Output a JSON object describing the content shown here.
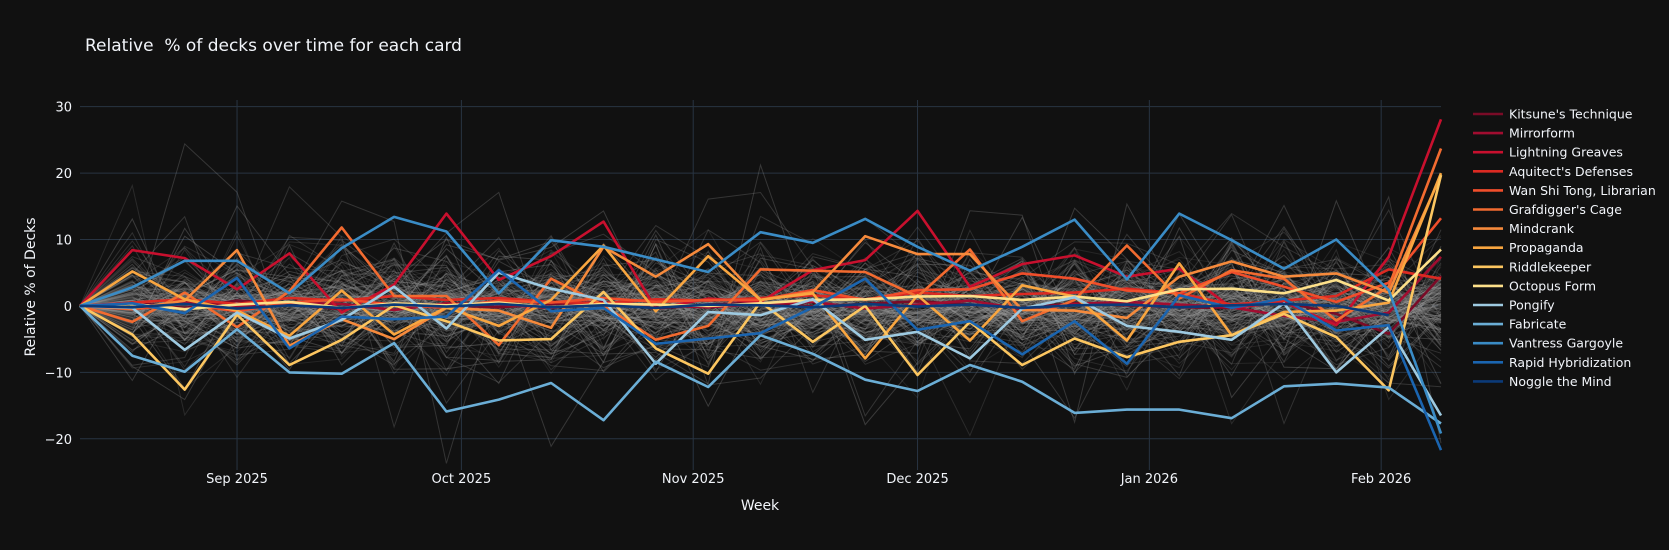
{
  "chart_data": {
    "type": "line",
    "title": "Relative  % of decks over time for each card",
    "xlabel": "Week",
    "ylabel": "Relative % of Decks",
    "x": [
      "2025-08-11",
      "2025-08-18",
      "2025-08-25",
      "2025-09-01",
      "2025-09-08",
      "2025-09-15",
      "2025-09-22",
      "2025-09-29",
      "2025-10-06",
      "2025-10-13",
      "2025-10-20",
      "2025-10-27",
      "2025-11-03",
      "2025-11-10",
      "2025-11-17",
      "2025-11-24",
      "2025-12-01",
      "2025-12-08",
      "2025-12-15",
      "2025-12-22",
      "2025-12-29",
      "2026-01-05",
      "2026-01-12",
      "2026-01-19",
      "2026-01-26",
      "2026-02-02",
      "2026-02-09"
    ],
    "xlim": [
      "2025-08-11",
      "2026-02-09"
    ],
    "ylim": [
      -24.7,
      31
    ],
    "x_ticks": [
      {
        "date": "2025-09-01",
        "label": "Sep 2025"
      },
      {
        "date": "2025-10-01",
        "label": "Oct 2025"
      },
      {
        "date": "2025-11-01",
        "label": "Nov 2025"
      },
      {
        "date": "2025-12-01",
        "label": "Dec 2025"
      },
      {
        "date": "2026-01-01",
        "label": "Jan 2026"
      },
      {
        "date": "2026-02-01",
        "label": "Feb 2026"
      }
    ],
    "y_ticks": [
      {
        "value": 30,
        "label": "30"
      },
      {
        "value": 20,
        "label": "20"
      },
      {
        "value": 10,
        "label": "10"
      },
      {
        "value": 0,
        "label": "0"
      },
      {
        "value": -10,
        "label": "−10"
      },
      {
        "value": -20,
        "label": "−20"
      }
    ],
    "grid": true,
    "zero_line": "dashed",
    "legend_position": "right",
    "background_series_count": 160,
    "background_color": "#9a9a9a",
    "series": [
      {
        "name": "Kitsune's Technique",
        "color": "#7a0b27",
        "values": [
          0,
          0.5,
          -0.3,
          0.8,
          0.2,
          -0.5,
          0.4,
          0.1,
          -0.2,
          0.3,
          0.6,
          -0.4,
          0.2,
          0.5,
          -0.1,
          0.3,
          0.7,
          0.2,
          -0.3,
          0.4,
          0.1,
          -0.2,
          -0.3,
          0.6,
          -1.2,
          -4.2,
          4.5
        ]
      },
      {
        "name": "Mirrorform",
        "color": "#a10d30",
        "values": [
          0,
          -0.4,
          0.6,
          -0.2,
          0.5,
          0.3,
          -0.6,
          0.4,
          0.2,
          -0.3,
          0.5,
          0.1,
          -0.2,
          0.3,
          0.6,
          -0.4,
          0.2,
          0.8,
          -0.5,
          0.3,
          0.6,
          0.2,
          -0.2,
          -1.5,
          -2.4,
          -1.0,
          7.4
        ]
      },
      {
        "name": "Lightning Greaves",
        "color": "#c8102e",
        "values": [
          0,
          8.4,
          7.2,
          2.5,
          7.9,
          -1.0,
          3.2,
          13.9,
          3.9,
          7.5,
          12.7,
          -0.4,
          1.1,
          0.6,
          5.4,
          6.9,
          14.3,
          2.9,
          6.3,
          7.6,
          4.4,
          5.6,
          -0.3,
          0.6,
          -2.9,
          7.4,
          28.1
        ]
      },
      {
        "name": "Aquitect's Defenses",
        "color": "#dc2a22",
        "values": [
          0,
          0.5,
          1.0,
          0.3,
          1.2,
          0.8,
          1.5,
          0.9,
          1.2,
          0.6,
          0.4,
          1.0,
          0.8,
          1.2,
          1.6,
          1.0,
          2.0,
          1.5,
          1.8,
          2.0,
          2.6,
          1.9,
          0.2,
          0.8,
          1.5,
          5.5,
          4.1
        ]
      },
      {
        "name": "Wan Shi Tong, Librarian",
        "color": "#f04e2b",
        "values": [
          0,
          -0.5,
          0.3,
          -0.8,
          0.5,
          1.0,
          0.2,
          -0.3,
          0.8,
          0.5,
          1.2,
          0.6,
          0.9,
          0.9,
          2.4,
          0.9,
          2.4,
          2.5,
          4.9,
          4.1,
          2.3,
          1.9,
          5.1,
          2.9,
          0.6,
          3.5,
          13.2
        ]
      },
      {
        "name": "Grafdigger's Cage",
        "color": "#f26b30",
        "values": [
          0,
          -2.4,
          2.0,
          -3.2,
          2.2,
          11.8,
          1.5,
          1.5,
          -5.9,
          4.1,
          0.1,
          -5.1,
          -3.0,
          5.5,
          5.3,
          5.1,
          1.4,
          8.5,
          -2.3,
          0.9,
          9.1,
          1.1,
          5.4,
          4.1,
          -2.2,
          2.9,
          23.7
        ]
      },
      {
        "name": "Mindcrank",
        "color": "#f68a3c",
        "values": [
          0,
          -0.4,
          0.8,
          8.4,
          -6.0,
          -2.0,
          -5.0,
          -0.3,
          -0.7,
          -3.3,
          8.9,
          4.4,
          9.3,
          0.9,
          2.1,
          10.5,
          7.8,
          7.8,
          -0.6,
          -0.7,
          -1.8,
          4.4,
          6.7,
          4.4,
          4.9,
          2.0,
          19.7
        ]
      },
      {
        "name": "Propaganda",
        "color": "#f9a640",
        "values": [
          0,
          5.2,
          1.0,
          -0.7,
          -4.5,
          2.3,
          -4.3,
          -0.2,
          -3.0,
          0.9,
          9.1,
          -0.8,
          7.5,
          0.9,
          1.9,
          -7.9,
          1.6,
          -5.2,
          3.1,
          1.4,
          -5.2,
          6.4,
          -4.4,
          -0.9,
          -0.7,
          0.5,
          20.0
        ]
      },
      {
        "name": "Riddlekeeper",
        "color": "#fcc660",
        "values": [
          0,
          -4.3,
          -12.6,
          -1.3,
          -8.9,
          -5.1,
          0.1,
          -2.3,
          -5.2,
          -5.0,
          2.1,
          -6.4,
          -10.2,
          0.6,
          -5.4,
          0,
          -10.4,
          -2.4,
          -8.9,
          -4.9,
          -7.7,
          -5.4,
          -4.4,
          -1.2,
          -4.7,
          -12.7,
          19.7
        ]
      },
      {
        "name": "Octopus Form",
        "color": "#fde08a",
        "values": [
          0,
          0.3,
          -0.5,
          0.2,
          0.6,
          -0.3,
          0.4,
          0.1,
          0.5,
          -0.2,
          0.3,
          0.2,
          0,
          0.4,
          0.9,
          1.0,
          1.4,
          1.5,
          0.9,
          1.4,
          0.7,
          2.5,
          2.6,
          1.9,
          3.9,
          0.8,
          8.5
        ]
      },
      {
        "name": "Pongify",
        "color": "#9ecae1",
        "values": [
          0,
          -0.3,
          -6.6,
          -1.0,
          -4.9,
          -2.1,
          2.9,
          -3.4,
          5.0,
          2.6,
          0.9,
          -8.7,
          -0.9,
          -1.4,
          1.0,
          -5.1,
          -3.9,
          -7.9,
          -0.4,
          1.3,
          -3.0,
          -3.9,
          -5.1,
          0.4,
          -10.0,
          -3.2,
          -16.5
        ]
      },
      {
        "name": "Fabricate",
        "color": "#6baed6",
        "values": [
          0,
          -7.5,
          -9.9,
          -3.5,
          -10.0,
          -10.2,
          -5.6,
          -15.9,
          -14.1,
          -11.6,
          -17.2,
          -8.4,
          -12.2,
          -4.4,
          -7.2,
          -11.1,
          -12.8,
          -8.9,
          -11.4,
          -16.1,
          -15.6,
          -15.6,
          -16.9,
          -12.1,
          -11.7,
          -12.3,
          -17.7
        ]
      },
      {
        "name": "Vantress Gargoyle",
        "color": "#3a8cc6",
        "values": [
          0,
          2.8,
          6.8,
          6.8,
          1.9,
          8.7,
          13.4,
          11.2,
          1.9,
          9.9,
          8.9,
          7.0,
          5.1,
          11.1,
          9.5,
          13.1,
          8.9,
          5.3,
          8.9,
          13.0,
          4.0,
          13.9,
          9.9,
          5.6,
          10.0,
          2.4,
          -19.2
        ]
      },
      {
        "name": "Rapid Hybridization",
        "color": "#1b65b0",
        "values": [
          0,
          0.4,
          -1.1,
          4.2,
          -6.4,
          -1.6,
          -2.0,
          -1.6,
          5.4,
          -0.8,
          -0.3,
          -5.7,
          -4.9,
          -4.1,
          -0.2,
          4.1,
          -3.6,
          -2.3,
          -7.3,
          -2.3,
          -8.7,
          1.6,
          -0.3,
          1.1,
          -3.7,
          -2.9,
          -21.7
        ]
      },
      {
        "name": "Noggle the Mind",
        "color": "#0b3a78",
        "values": [
          0,
          -0.2,
          0.3,
          -0.4,
          0.1,
          -0.3,
          0.2,
          -0.1,
          0.3,
          -0.2,
          0.1,
          -0.3,
          0.2,
          0.1,
          -0.2,
          0.3,
          -0.1,
          0.2,
          -0.3,
          0.1,
          0.2,
          -0.2,
          0.1,
          0.3,
          0,
          -1.4,
          null
        ]
      }
    ]
  }
}
